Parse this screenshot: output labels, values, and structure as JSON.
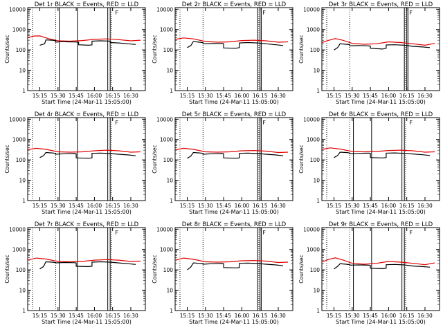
{
  "colors": {
    "background": "#ffffff",
    "axes": "#000000",
    "events": "#000000",
    "lld": "#e00000"
  },
  "chart_data": [
    {
      "type": "line",
      "title": "Det 1r BLACK = Events, RED = LLD",
      "xlabel": "Start Time (24-Mar-11 15:05:00)",
      "ylabel": "Counts/sec",
      "xticks": [
        "15:15",
        "15:30",
        "15:45",
        "16:00",
        "16:15",
        "16:30"
      ],
      "yticks": [
        "1",
        "10",
        "100",
        "1000",
        "10000"
      ],
      "xlim": [
        "15:05",
        "16:42"
      ],
      "ylim": [
        1,
        12000
      ],
      "yscale": "log",
      "dotted_lines": [
        "15:09",
        "15:28",
        "16:14"
      ],
      "solid_lines": [
        "15:31",
        "15:46",
        "16:11",
        "16:13"
      ],
      "markers": [
        {
          "label": "F",
          "x": "16:16"
        }
      ],
      "series": [
        {
          "x": [
            "15:05",
            "15:10",
            "15:15",
            "15:22",
            "15:30",
            "15:40",
            "15:50",
            "16:00",
            "16:10",
            "16:20",
            "16:30",
            "16:38"
          ],
          "values": [
            400,
            480,
            490,
            360,
            280,
            270,
            290,
            330,
            350,
            320,
            280,
            300
          ]
        },
        {
          "x": [
            "15:15",
            "15:19",
            "15:20",
            "15:25",
            "15:28",
            "15:28",
            "15:33",
            "15:38",
            "15:44",
            "15:47",
            "15:47",
            "15:55",
            "15:58",
            "15:58",
            "16:05",
            "16:13",
            "16:13",
            "16:20",
            "16:28",
            "16:34"
          ],
          "values": [
            170,
            200,
            310,
            300,
            290,
            240,
            255,
            250,
            245,
            240,
            180,
            170,
            175,
            270,
            280,
            270,
            230,
            220,
            200,
            185
          ]
        }
      ]
    },
    {
      "type": "line",
      "title": "Det 2r BLACK = Events, RED = LLD",
      "xlabel": "Start Time (24-Mar-11 15:05:00)",
      "ylabel": "Counts/sec",
      "xticks": [
        "15:15",
        "15:30",
        "15:45",
        "16:00",
        "16:15",
        "16:30"
      ],
      "yticks": [
        "1",
        "10",
        "100",
        "1000",
        "10000"
      ],
      "xlim": [
        "15:05",
        "16:42"
      ],
      "ylim": [
        1,
        12000
      ],
      "yscale": "log",
      "dotted_lines": [
        "15:09",
        "15:28",
        "16:14"
      ],
      "solid_lines": [
        "16:13",
        "16:15",
        "16:16"
      ],
      "markers": [
        {
          "label": "F",
          "x": "16:16"
        }
      ],
      "series": [
        {
          "x": [
            "15:05",
            "15:12",
            "15:20",
            "15:30",
            "15:40",
            "15:50",
            "16:00",
            "16:10",
            "16:20",
            "16:30",
            "16:38"
          ],
          "values": [
            330,
            390,
            350,
            260,
            240,
            250,
            290,
            300,
            280,
            240,
            250
          ]
        },
        {
          "x": [
            "15:15",
            "15:18",
            "15:20",
            "15:25",
            "15:28",
            "15:28",
            "15:35",
            "15:44",
            "15:45",
            "15:45",
            "15:55",
            "15:58",
            "15:58",
            "16:05",
            "16:13",
            "16:20",
            "16:28",
            "16:34"
          ],
          "values": [
            130,
            165,
            260,
            240,
            230,
            200,
            205,
            210,
            200,
            125,
            120,
            130,
            220,
            230,
            220,
            200,
            180,
            165
          ]
        }
      ]
    },
    {
      "type": "line",
      "title": "Det 3r BLACK = Events, RED = LLD",
      "xlabel": "Start Time (24-Mar-11 15:05:00)",
      "ylabel": "Counts/sec",
      "xticks": [
        "15:15",
        "15:30",
        "15:45",
        "16:00",
        "16:15",
        "16:30"
      ],
      "yticks": [
        "1",
        "10",
        "100",
        "1000",
        "10000"
      ],
      "xlim": [
        "15:05",
        "16:42"
      ],
      "ylim": [
        1,
        12000
      ],
      "yscale": "log",
      "dotted_lines": [
        "15:09",
        "15:28",
        "16:14"
      ],
      "solid_lines": [
        "16:13",
        "16:15",
        "16:16"
      ],
      "markers": [
        {
          "label": "F",
          "x": "16:16"
        }
      ],
      "series": [
        {
          "x": [
            "15:05",
            "15:10",
            "15:16",
            "15:22",
            "15:30",
            "15:40",
            "15:50",
            "16:00",
            "16:10",
            "16:20",
            "16:30",
            "16:38"
          ],
          "values": [
            230,
            290,
            360,
            300,
            210,
            190,
            200,
            250,
            230,
            200,
            170,
            210
          ]
        },
        {
          "x": [
            "15:15",
            "15:18",
            "15:20",
            "15:25",
            "15:28",
            "15:28",
            "15:35",
            "15:42",
            "15:45",
            "15:45",
            "15:55",
            "15:58",
            "15:58",
            "16:05",
            "16:13",
            "16:20",
            "16:28",
            "16:34"
          ],
          "values": [
            100,
            130,
            200,
            190,
            180,
            160,
            165,
            160,
            155,
            120,
            110,
            120,
            175,
            180,
            170,
            150,
            140,
            130
          ]
        }
      ]
    },
    {
      "type": "line",
      "title": "Det 4r BLACK = Events, RED = LLD",
      "xlabel": "Start Time (24-Mar-11 15:05:00)",
      "ylabel": "Counts/sec",
      "xticks": [
        "15:15",
        "15:30",
        "15:45",
        "16:00",
        "16:15",
        "16:30"
      ],
      "yticks": [
        "1",
        "10",
        "100",
        "1000",
        "10000"
      ],
      "xlim": [
        "15:05",
        "16:42"
      ],
      "ylim": [
        1,
        12000
      ],
      "yscale": "log",
      "dotted_lines": [
        "15:09",
        "15:28",
        "16:14"
      ],
      "solid_lines": [
        "15:31",
        "15:46",
        "16:11",
        "16:13"
      ],
      "markers": [
        {
          "label": "F",
          "x": "16:16"
        }
      ],
      "series": [
        {
          "x": [
            "15:05",
            "15:12",
            "15:20",
            "15:30",
            "15:40",
            "15:50",
            "16:00",
            "16:10",
            "16:20",
            "16:30",
            "16:38"
          ],
          "values": [
            320,
            370,
            330,
            250,
            240,
            250,
            280,
            300,
            280,
            240,
            250
          ]
        },
        {
          "x": [
            "15:15",
            "15:18",
            "15:20",
            "15:25",
            "15:28",
            "15:28",
            "15:35",
            "15:44",
            "15:45",
            "15:45",
            "15:55",
            "15:58",
            "15:58",
            "16:05",
            "16:13",
            "16:20",
            "16:28",
            "16:34"
          ],
          "values": [
            130,
            160,
            230,
            220,
            210,
            190,
            200,
            205,
            200,
            125,
            120,
            125,
            210,
            215,
            205,
            190,
            175,
            160
          ]
        }
      ]
    },
    {
      "type": "line",
      "title": "Det 5r BLACK = Events, RED = LLD",
      "xlabel": "Start Time (24-Mar-11 15:05:00)",
      "ylabel": "Counts/sec",
      "xticks": [
        "15:15",
        "15:30",
        "15:45",
        "16:00",
        "16:15",
        "16:30"
      ],
      "yticks": [
        "1",
        "10",
        "100",
        "1000",
        "10000"
      ],
      "xlim": [
        "15:05",
        "16:42"
      ],
      "ylim": [
        1,
        12000
      ],
      "yscale": "log",
      "dotted_lines": [
        "15:09",
        "15:28",
        "16:14"
      ],
      "solid_lines": [
        "16:13",
        "16:15",
        "16:16"
      ],
      "markers": [
        {
          "label": "F",
          "x": "16:16"
        }
      ],
      "series": [
        {
          "x": [
            "15:05",
            "15:12",
            "15:20",
            "15:30",
            "15:40",
            "15:50",
            "16:00",
            "16:10",
            "16:20",
            "16:30",
            "16:38"
          ],
          "values": [
            310,
            370,
            330,
            250,
            240,
            250,
            280,
            290,
            270,
            230,
            240
          ]
        },
        {
          "x": [
            "15:15",
            "15:18",
            "15:20",
            "15:25",
            "15:28",
            "15:28",
            "15:35",
            "15:44",
            "15:45",
            "15:45",
            "15:55",
            "15:58",
            "15:58",
            "16:05",
            "16:13",
            "16:20",
            "16:28",
            "16:34"
          ],
          "values": [
            120,
            155,
            230,
            220,
            210,
            190,
            200,
            205,
            200,
            125,
            120,
            125,
            210,
            215,
            205,
            190,
            175,
            160
          ]
        }
      ]
    },
    {
      "type": "line",
      "title": "Det 6r BLACK = Events, RED = LLD",
      "xlabel": "Start Time (24-Mar-11 15:05:00)",
      "ylabel": "Counts/sec",
      "xticks": [
        "15:15",
        "15:30",
        "15:45",
        "16:00",
        "16:15",
        "16:30"
      ],
      "yticks": [
        "1",
        "10",
        "100",
        "1000",
        "10000"
      ],
      "xlim": [
        "15:05",
        "16:42"
      ],
      "ylim": [
        1,
        12000
      ],
      "yscale": "log",
      "dotted_lines": [
        "15:09",
        "15:28",
        "16:14"
      ],
      "solid_lines": [
        "15:31",
        "15:46",
        "16:11",
        "16:13"
      ],
      "markers": [
        {
          "label": "F",
          "x": "16:16"
        }
      ],
      "series": [
        {
          "x": [
            "15:05",
            "15:12",
            "15:20",
            "15:30",
            "15:40",
            "15:50",
            "16:00",
            "16:10",
            "16:20",
            "16:30",
            "16:38"
          ],
          "values": [
            330,
            390,
            340,
            260,
            250,
            260,
            290,
            300,
            280,
            240,
            250
          ]
        },
        {
          "x": [
            "15:15",
            "15:18",
            "15:20",
            "15:25",
            "15:28",
            "15:28",
            "15:35",
            "15:44",
            "15:45",
            "15:45",
            "15:55",
            "15:58",
            "15:58",
            "16:05",
            "16:13",
            "16:20",
            "16:28",
            "16:34"
          ],
          "values": [
            130,
            165,
            240,
            230,
            220,
            200,
            210,
            215,
            210,
            130,
            125,
            130,
            215,
            220,
            210,
            195,
            180,
            165
          ]
        }
      ]
    },
    {
      "type": "line",
      "title": "Det 7r BLACK = Events, RED = LLD",
      "xlabel": "Start Time (24-Mar-11 15:05:00)",
      "ylabel": "Counts/sec",
      "xticks": [
        "15:15",
        "15:30",
        "15:45",
        "16:00",
        "16:15",
        "16:30"
      ],
      "yticks": [
        "1",
        "10",
        "100",
        "1000",
        "10000"
      ],
      "xlim": [
        "15:05",
        "16:42"
      ],
      "ylim": [
        1,
        12000
      ],
      "yscale": "log",
      "dotted_lines": [
        "15:09",
        "15:28",
        "16:14"
      ],
      "solid_lines": [
        "15:31",
        "15:46",
        "16:11",
        "16:13"
      ],
      "markers": [
        {
          "label": "F",
          "x": "16:16"
        }
      ],
      "series": [
        {
          "x": [
            "15:05",
            "15:12",
            "15:20",
            "15:30",
            "15:40",
            "15:50",
            "16:00",
            "16:10",
            "16:20",
            "16:30",
            "16:38"
          ],
          "values": [
            300,
            380,
            340,
            260,
            250,
            260,
            300,
            320,
            300,
            260,
            270
          ]
        },
        {
          "x": [
            "15:15",
            "15:18",
            "15:20",
            "15:25",
            "15:28",
            "15:28",
            "15:35",
            "15:44",
            "15:45",
            "15:45",
            "15:55",
            "15:58",
            "15:58",
            "16:05",
            "16:13",
            "16:20",
            "16:28",
            "16:34"
          ],
          "values": [
            110,
            145,
            250,
            240,
            230,
            220,
            230,
            225,
            220,
            150,
            145,
            150,
            240,
            250,
            240,
            220,
            200,
            185
          ]
        }
      ]
    },
    {
      "type": "line",
      "title": "Det 8r BLACK = Events, RED = LLD",
      "xlabel": "Start Time (24-Mar-11 15:05:00)",
      "ylabel": "Counts/sec",
      "xticks": [
        "15:15",
        "15:30",
        "15:45",
        "16:00",
        "16:15",
        "16:30"
      ],
      "yticks": [
        "1",
        "10",
        "100",
        "1000",
        "10000"
      ],
      "xlim": [
        "15:05",
        "16:42"
      ],
      "ylim": [
        1,
        12000
      ],
      "yscale": "log",
      "dotted_lines": [
        "15:09",
        "15:28",
        "16:14"
      ],
      "solid_lines": [
        "16:13",
        "16:15",
        "16:16"
      ],
      "markers": [
        {
          "label": "F",
          "x": "16:16"
        }
      ],
      "series": [
        {
          "x": [
            "15:05",
            "15:12",
            "15:20",
            "15:30",
            "15:40",
            "15:50",
            "16:00",
            "16:10",
            "16:20",
            "16:30",
            "16:38"
          ],
          "values": [
            300,
            380,
            330,
            250,
            240,
            250,
            280,
            290,
            270,
            230,
            240
          ]
        },
        {
          "x": [
            "15:15",
            "15:18",
            "15:20",
            "15:25",
            "15:28",
            "15:28",
            "15:35",
            "15:44",
            "15:45",
            "15:45",
            "15:55",
            "15:58",
            "15:58",
            "16:05",
            "16:13",
            "16:20",
            "16:28",
            "16:34"
          ],
          "values": [
            100,
            140,
            220,
            210,
            200,
            190,
            200,
            205,
            200,
            130,
            125,
            130,
            210,
            215,
            205,
            190,
            175,
            160
          ]
        }
      ]
    },
    {
      "type": "line",
      "title": "Det 9r BLACK = Events, RED = LLD",
      "xlabel": "Start Time (24-Mar-11 15:05:00)",
      "ylabel": "Counts/sec",
      "xticks": [
        "15:15",
        "15:30",
        "15:45",
        "16:00",
        "16:15",
        "16:30"
      ],
      "yticks": [
        "1",
        "10",
        "100",
        "1000",
        "10000"
      ],
      "xlim": [
        "15:05",
        "16:42"
      ],
      "ylim": [
        1,
        12000
      ],
      "yscale": "log",
      "dotted_lines": [
        "15:09",
        "15:28",
        "16:14"
      ],
      "solid_lines": [
        "15:31",
        "15:46",
        "16:11",
        "16:13"
      ],
      "markers": [
        {
          "label": "F",
          "x": "16:16"
        }
      ],
      "series": [
        {
          "x": [
            "15:05",
            "15:10",
            "15:16",
            "15:22",
            "15:30",
            "15:40",
            "15:50",
            "16:00",
            "16:10",
            "16:20",
            "16:30",
            "16:38"
          ],
          "values": [
            240,
            320,
            390,
            310,
            210,
            190,
            210,
            260,
            240,
            210,
            180,
            220
          ]
        },
        {
          "x": [
            "15:15",
            "15:18",
            "15:20",
            "15:25",
            "15:28",
            "15:28",
            "15:35",
            "15:44",
            "15:45",
            "15:45",
            "15:55",
            "15:58",
            "15:58",
            "16:05",
            "16:13",
            "16:20",
            "16:28",
            "16:34"
          ],
          "values": [
            110,
            150,
            200,
            190,
            180,
            170,
            175,
            170,
            165,
            120,
            115,
            120,
            180,
            185,
            175,
            155,
            145,
            135
          ]
        }
      ]
    }
  ]
}
